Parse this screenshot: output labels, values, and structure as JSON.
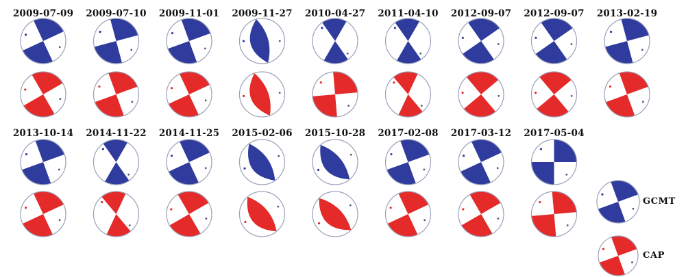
{
  "colors": {
    "gcmt": "#2f3c9e",
    "cap": "#e52a2a",
    "outline": "#9aa0b8",
    "background": "#ffffff"
  },
  "events": [
    {
      "date": "2009-07-09",
      "gcmt_variant": "quadrant",
      "cap_variant": "quadrant"
    },
    {
      "date": "2009-07-10",
      "gcmt_variant": "quadrant",
      "cap_variant": "quadrant"
    },
    {
      "date": "2009-11-01",
      "gcmt_variant": "quadrant",
      "cap_variant": "quadrant"
    },
    {
      "date": "2009-11-27",
      "gcmt_variant": "lens",
      "cap_variant": "lens"
    },
    {
      "date": "2010-04-27",
      "gcmt_variant": "hourglass",
      "cap_variant": "quadrant"
    },
    {
      "date": "2011-04-10",
      "gcmt_variant": "hourglass",
      "cap_variant": "hourglass"
    },
    {
      "date": "2012-09-07",
      "gcmt_variant": "quadrant",
      "cap_variant": "quadrant"
    },
    {
      "date": "2012-09-07",
      "gcmt_variant": "quadrant",
      "cap_variant": "quadrant"
    },
    {
      "date": "2013-02-19",
      "gcmt_variant": "quadrant",
      "cap_variant": "quadrant"
    },
    {
      "date": "2013-10-14",
      "gcmt_variant": "quadrant",
      "cap_variant": "quadrant"
    },
    {
      "date": "2014-11-22",
      "gcmt_variant": "hourglass",
      "cap_variant": "hourglass"
    },
    {
      "date": "2014-11-25",
      "gcmt_variant": "quadrant",
      "cap_variant": "quadrant"
    },
    {
      "date": "2015-02-06",
      "gcmt_variant": "lens",
      "cap_variant": "lens"
    },
    {
      "date": "2015-10-28",
      "gcmt_variant": "lens",
      "cap_variant": "lens"
    },
    {
      "date": "2017-02-08",
      "gcmt_variant": "quadrant",
      "cap_variant": "quadrant"
    },
    {
      "date": "2017-03-12",
      "gcmt_variant": "quadrant",
      "cap_variant": "quadrant"
    },
    {
      "date": "2017-05-04",
      "gcmt_variant": "quadrant",
      "cap_variant": "quadrant"
    }
  ],
  "legend": {
    "gcmt_label": "GCMT",
    "cap_label": "CAP"
  }
}
